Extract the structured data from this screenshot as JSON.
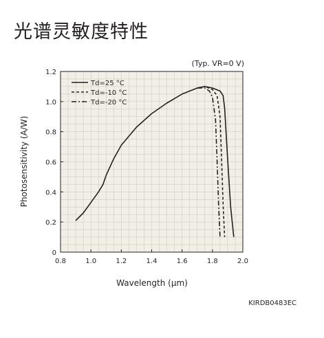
{
  "page": {
    "title": "光谱灵敏度特性",
    "condition": "(Typ. VR=0 V)",
    "code": "KIRDB0483EC"
  },
  "colors": {
    "plot_background": "#f2efe6",
    "grid": "#c8c4ba",
    "line": "#231f20"
  },
  "chart_data": {
    "type": "line",
    "xlabel": "Wavelength (μm)",
    "ylabel": "Photosensitivity (A/W)",
    "xlim": [
      0.8,
      2.0
    ],
    "ylim": [
      0,
      1.2
    ],
    "xticks": [
      "0.8",
      "1.0",
      "1.2",
      "1.4",
      "1.6",
      "1.8",
      "2.0"
    ],
    "yticks": [
      "0",
      "0.2",
      "0.4",
      "0.6",
      "0.8",
      "1.0",
      "1.2"
    ],
    "grid": true,
    "legend_position": "top-left",
    "series": [
      {
        "name": "Td=25 °C",
        "style": "solid",
        "x": [
          0.9,
          0.95,
          1.0,
          1.05,
          1.08,
          1.1,
          1.15,
          1.2,
          1.3,
          1.4,
          1.5,
          1.6,
          1.7,
          1.75,
          1.8,
          1.85,
          1.87,
          1.88,
          1.9,
          1.92,
          1.94
        ],
        "y": [
          0.21,
          0.26,
          0.33,
          0.4,
          0.45,
          0.51,
          0.62,
          0.71,
          0.83,
          0.92,
          0.99,
          1.05,
          1.09,
          1.1,
          1.09,
          1.07,
          1.04,
          0.96,
          0.62,
          0.3,
          0.1
        ]
      },
      {
        "name": "Td=-10 °C",
        "style": "dashed",
        "x": [
          1.7,
          1.75,
          1.8,
          1.83,
          1.85,
          1.86,
          1.87,
          1.88
        ],
        "y": [
          1.09,
          1.1,
          1.08,
          1.04,
          0.9,
          0.62,
          0.32,
          0.1
        ]
      },
      {
        "name": "Td=-20 °C",
        "style": "dashdot",
        "x": [
          1.7,
          1.75,
          1.78,
          1.8,
          1.82,
          1.83,
          1.84,
          1.85
        ],
        "y": [
          1.09,
          1.09,
          1.07,
          1.03,
          0.88,
          0.62,
          0.32,
          0.1
        ]
      }
    ]
  }
}
